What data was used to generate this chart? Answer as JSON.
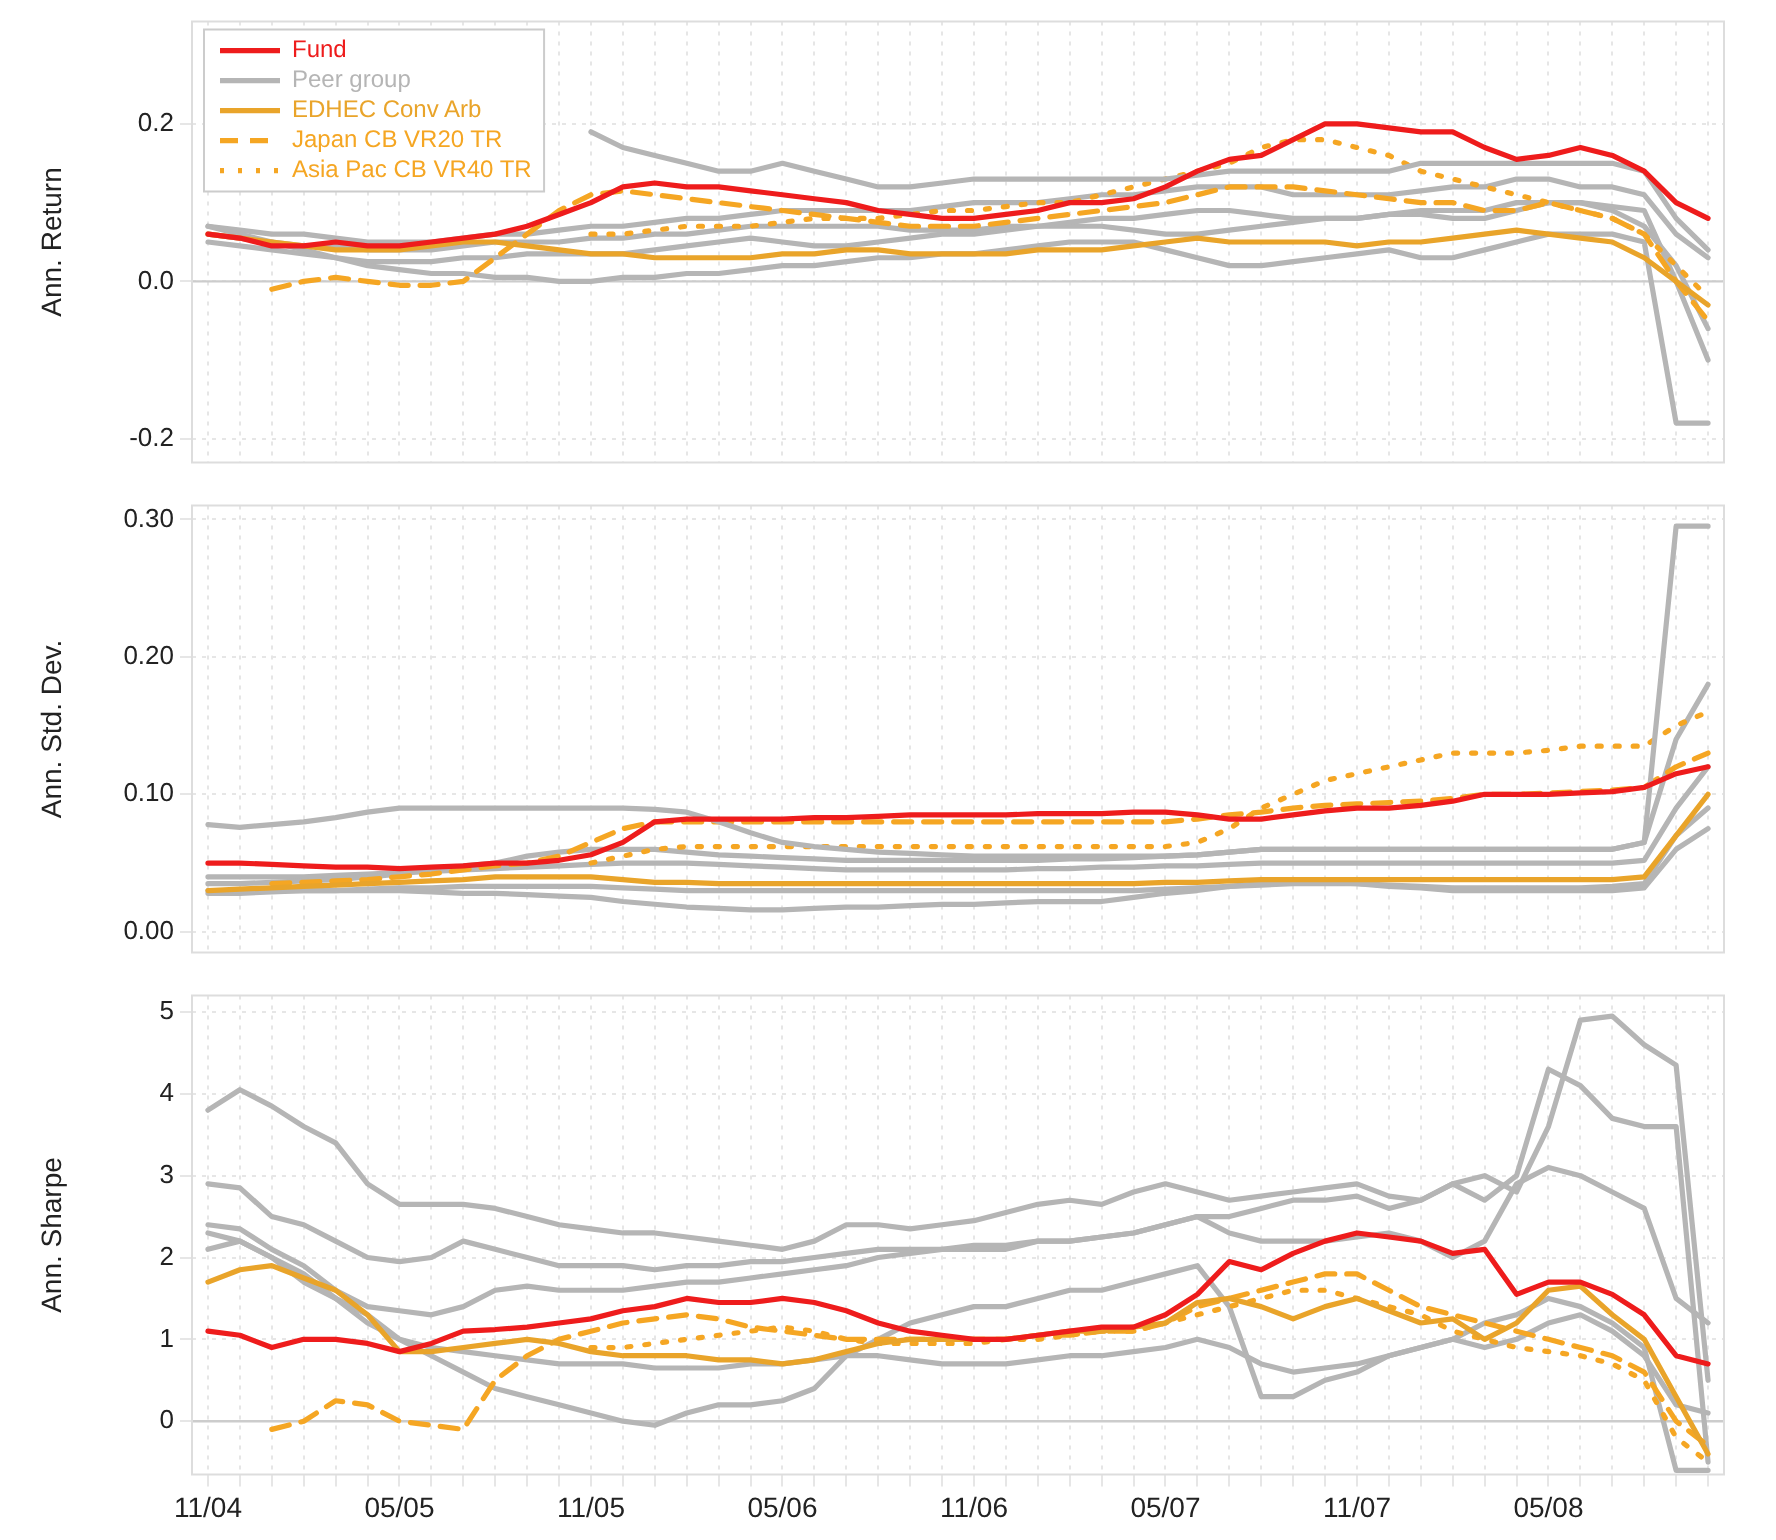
{
  "chart_data": [
    {
      "type": "line",
      "ylabel": "Ann. Return",
      "categories": [
        null,
        null,
        null,
        null,
        null,
        null,
        null,
        null,
        null,
        null,
        null,
        null,
        null,
        null,
        null,
        null,
        null,
        null,
        null,
        null,
        null,
        null,
        null,
        null,
        null,
        null,
        null,
        null,
        null,
        null,
        null,
        null,
        null,
        null,
        null,
        null,
        null,
        null,
        null,
        null,
        null,
        null,
        null,
        null,
        null,
        null,
        null,
        null
      ],
      "ylim": [
        -0.23,
        0.33
      ],
      "yticks": [
        -0.2,
        {
          "value": 0,
          "label": "0.0"
        },
        0.2
      ],
      "grid": true,
      "tick_labels": "y",
      "legend": "top left",
      "line_style": "solid",
      "ref_lines": [
        {
          "axis": "y",
          "value": 0,
          "color": "#cccccc"
        }
      ],
      "series": [
        {
          "name": "Fund",
          "color": "#ee1c1c",
          "values": [
            0.06,
            0.055,
            0.045,
            0.045,
            0.05,
            0.045,
            0.045,
            0.05,
            0.055,
            0.06,
            0.07,
            0.085,
            0.1,
            0.12,
            0.125,
            0.12,
            0.12,
            0.115,
            0.11,
            0.105,
            0.1,
            0.09,
            0.085,
            0.08,
            0.08,
            0.085,
            0.09,
            0.1,
            0.1,
            0.105,
            0.12,
            0.14,
            0.155,
            0.16,
            0.18,
            0.2,
            0.2,
            0.195,
            0.19,
            0.19,
            0.17,
            0.155,
            0.16,
            0.17,
            0.16,
            0.14,
            0.1,
            0.08
          ]
        },
        {
          "name": "Peer group",
          "color": "#b5b5b5",
          "values": [
            null,
            null,
            null,
            null,
            null,
            null,
            null,
            null,
            null,
            null,
            null,
            null,
            0.19,
            0.17,
            0.16,
            0.15,
            0.14,
            0.14,
            0.15,
            0.14,
            0.13,
            0.12,
            0.12,
            0.125,
            0.13,
            0.13,
            0.13,
            0.13,
            0.13,
            0.13,
            0.13,
            0.135,
            0.14,
            0.14,
            0.14,
            0.14,
            0.14,
            0.14,
            0.15,
            0.15,
            0.15,
            0.15,
            0.15,
            0.15,
            0.15,
            0.14,
            0.08,
            0.04
          ]
        },
        {
          "name": "EDHEC Conv Arb",
          "color": "#e9a42a",
          "values": [
            0.06,
            0.055,
            0.05,
            0.045,
            0.04,
            0.04,
            0.04,
            0.045,
            0.05,
            0.05,
            0.045,
            0.04,
            0.035,
            0.035,
            0.03,
            0.03,
            0.03,
            0.03,
            0.035,
            0.035,
            0.04,
            0.04,
            0.035,
            0.035,
            0.035,
            0.035,
            0.04,
            0.04,
            0.04,
            0.045,
            0.05,
            0.055,
            0.05,
            0.05,
            0.05,
            0.05,
            0.045,
            0.05,
            0.05,
            0.055,
            0.06,
            0.065,
            0.06,
            0.055,
            0.05,
            0.03,
            0,
            -0.03
          ]
        },
        {
          "name": "Japan CB VR20 TR",
          "color": "#f5a623",
          "line_style": "dashed",
          "values": [
            null,
            null,
            -0.01,
            0,
            0.005,
            0,
            -0.005,
            -0.005,
            0,
            0.03,
            0.06,
            0.09,
            0.11,
            0.115,
            0.11,
            0.105,
            0.1,
            0.095,
            0.09,
            0.085,
            0.08,
            0.075,
            0.07,
            0.07,
            0.07,
            0.075,
            0.08,
            0.085,
            0.09,
            0.095,
            0.1,
            0.11,
            0.12,
            0.12,
            0.12,
            0.115,
            0.11,
            0.105,
            0.1,
            0.1,
            0.09,
            0.09,
            0.1,
            0.09,
            0.08,
            0.06,
            0,
            -0.05
          ]
        },
        {
          "name": "Asia Pac CB VR40 TR",
          "color": "#f5a623",
          "line_style": "dotted",
          "values": [
            null,
            null,
            null,
            null,
            null,
            null,
            null,
            null,
            null,
            null,
            null,
            null,
            0.06,
            0.06,
            0.065,
            0.07,
            0.07,
            0.07,
            0.075,
            0.08,
            0.08,
            0.08,
            0.085,
            0.09,
            0.09,
            0.095,
            0.1,
            0.1,
            0.11,
            0.12,
            0.13,
            0.14,
            0.15,
            0.17,
            0.18,
            0.18,
            0.17,
            0.16,
            0.14,
            0.13,
            0.12,
            0.11,
            0.1,
            0.09,
            0.08,
            0.06,
            0.02,
            -0.02
          ]
        },
        {
          "color": "#b5b5b5",
          "values": [
            0.07,
            0.06,
            0.05,
            0.04,
            0.03,
            0.02,
            0.015,
            0.01,
            0.01,
            0.005,
            0.005,
            0,
            0,
            0.005,
            0.005,
            0.01,
            0.01,
            0.015,
            0.02,
            0.02,
            0.025,
            0.03,
            0.03,
            0.035,
            0.035,
            0.04,
            0.045,
            0.05,
            0.05,
            0.05,
            0.04,
            0.03,
            0.02,
            0.02,
            0.025,
            0.03,
            0.035,
            0.04,
            0.03,
            0.03,
            0.04,
            0.05,
            0.06,
            0.06,
            0.06,
            0.05,
            -0.18,
            -0.18
          ]
        },
        {
          "color": "#b5b5b5",
          "values": [
            0.07,
            0.065,
            0.06,
            0.06,
            0.055,
            0.05,
            0.05,
            0.05,
            0.055,
            0.06,
            0.06,
            0.065,
            0.07,
            0.07,
            0.075,
            0.08,
            0.08,
            0.085,
            0.09,
            0.09,
            0.09,
            0.09,
            0.09,
            0.095,
            0.1,
            0.1,
            0.1,
            0.105,
            0.11,
            0.11,
            0.115,
            0.12,
            0.12,
            0.12,
            0.11,
            0.11,
            0.11,
            0.11,
            0.115,
            0.12,
            0.12,
            0.13,
            0.13,
            0.12,
            0.12,
            0.11,
            0.06,
            0.03
          ]
        },
        {
          "color": "#b5b5b5",
          "values": [
            0.06,
            0.055,
            0.05,
            0.045,
            0.045,
            0.04,
            0.04,
            0.04,
            0.045,
            0.05,
            0.05,
            0.05,
            0.055,
            0.055,
            0.06,
            0.06,
            0.065,
            0.07,
            0.07,
            0.07,
            0.07,
            0.07,
            0.065,
            0.065,
            0.065,
            0.07,
            0.07,
            0.075,
            0.08,
            0.08,
            0.085,
            0.09,
            0.09,
            0.085,
            0.08,
            0.08,
            0.08,
            0.085,
            0.09,
            0.09,
            0.09,
            0.1,
            0.1,
            0.1,
            0.095,
            0.09,
            0,
            -0.1
          ]
        },
        {
          "color": "#b5b5b5",
          "values": [
            0.05,
            0.045,
            0.04,
            0.035,
            0.03,
            0.025,
            0.025,
            0.025,
            0.03,
            0.03,
            0.035,
            0.035,
            0.035,
            0.035,
            0.04,
            0.045,
            0.05,
            0.055,
            0.05,
            0.045,
            0.045,
            0.05,
            0.055,
            0.06,
            0.06,
            0.065,
            0.07,
            0.07,
            0.07,
            0.065,
            0.06,
            0.06,
            0.065,
            0.07,
            0.075,
            0.08,
            0.08,
            0.085,
            0.085,
            0.08,
            0.08,
            0.09,
            0.1,
            0.1,
            0.09,
            0.07,
            0.02,
            -0.06
          ]
        }
      ]
    },
    {
      "type": "line",
      "ylabel": "Ann. Std. Dev.",
      "categories": [
        null,
        null,
        null,
        null,
        null,
        null,
        null,
        null,
        null,
        null,
        null,
        null,
        null,
        null,
        null,
        null,
        null,
        null,
        null,
        null,
        null,
        null,
        null,
        null,
        null,
        null,
        null,
        null,
        null,
        null,
        null,
        null,
        null,
        null,
        null,
        null,
        null,
        null,
        null,
        null,
        null,
        null,
        null,
        null,
        null,
        null,
        null,
        null
      ],
      "ylim": [
        -0.015,
        0.31
      ],
      "yticks": [
        {
          "value": 0,
          "label": "0.00"
        },
        {
          "value": 0.1,
          "label": "0.10"
        },
        {
          "value": 0.2,
          "label": "0.20"
        },
        {
          "value": 0.3,
          "label": "0.30"
        }
      ],
      "grid": true,
      "tick_labels": "y",
      "line_style": "solid",
      "series": [
        {
          "color": "#ee1c1c",
          "values": [
            0.05,
            0.05,
            0.049,
            0.048,
            0.047,
            0.047,
            0.046,
            0.047,
            0.048,
            0.05,
            0.05,
            0.052,
            0.056,
            0.065,
            0.08,
            0.082,
            0.082,
            0.082,
            0.082,
            0.083,
            0.083,
            0.084,
            0.085,
            0.085,
            0.085,
            0.085,
            0.086,
            0.086,
            0.086,
            0.087,
            0.087,
            0.085,
            0.082,
            0.082,
            0.085,
            0.088,
            0.09,
            0.09,
            0.092,
            0.095,
            0.1,
            0.1,
            0.1,
            0.101,
            0.102,
            0.105,
            0.115,
            0.12
          ]
        },
        {
          "color": "#b5b5b5",
          "values": [
            0.078,
            0.076,
            0.078,
            0.08,
            0.083,
            0.087,
            0.09,
            0.09,
            0.09,
            0.09,
            0.09,
            0.09,
            0.09,
            0.09,
            0.089,
            0.087,
            0.08,
            0.072,
            0.065,
            0.062,
            0.06,
            0.058,
            0.057,
            0.056,
            0.055,
            0.055,
            0.055,
            0.055,
            0.055,
            0.055,
            0.055,
            0.056,
            0.058,
            0.06,
            0.06,
            0.06,
            0.06,
            0.06,
            0.06,
            0.06,
            0.06,
            0.06,
            0.06,
            0.06,
            0.06,
            0.065,
            0.295,
            0.295
          ]
        },
        {
          "color": "#e9a42a",
          "values": [
            0.03,
            0.031,
            0.032,
            0.033,
            0.034,
            0.035,
            0.036,
            0.037,
            0.038,
            0.04,
            0.04,
            0.04,
            0.04,
            0.038,
            0.036,
            0.036,
            0.035,
            0.035,
            0.035,
            0.035,
            0.035,
            0.035,
            0.035,
            0.035,
            0.035,
            0.035,
            0.035,
            0.035,
            0.035,
            0.035,
            0.036,
            0.036,
            0.037,
            0.038,
            0.038,
            0.038,
            0.038,
            0.038,
            0.038,
            0.038,
            0.038,
            0.038,
            0.038,
            0.038,
            0.038,
            0.04,
            0.07,
            0.1
          ]
        },
        {
          "color": "#f5a623",
          "line_style": "dashed",
          "values": [
            null,
            null,
            0.035,
            0.036,
            0.037,
            0.038,
            0.04,
            0.042,
            0.045,
            0.048,
            0.05,
            0.055,
            0.065,
            0.075,
            0.08,
            0.08,
            0.08,
            0.08,
            0.08,
            0.08,
            0.08,
            0.08,
            0.08,
            0.08,
            0.08,
            0.08,
            0.08,
            0.08,
            0.08,
            0.08,
            0.08,
            0.082,
            0.085,
            0.087,
            0.09,
            0.092,
            0.093,
            0.094,
            0.095,
            0.097,
            0.1,
            0.1,
            0.101,
            0.102,
            0.103,
            0.105,
            0.12,
            0.13
          ]
        },
        {
          "color": "#f5a623",
          "line_style": "dotted",
          "values": [
            null,
            null,
            null,
            null,
            null,
            null,
            null,
            null,
            null,
            null,
            null,
            null,
            0.05,
            0.055,
            0.06,
            0.062,
            0.062,
            0.062,
            0.062,
            0.062,
            0.062,
            0.062,
            0.062,
            0.062,
            0.062,
            0.062,
            0.062,
            0.062,
            0.062,
            0.062,
            0.062,
            0.065,
            0.075,
            0.09,
            0.1,
            0.11,
            0.115,
            0.12,
            0.125,
            0.13,
            0.13,
            0.13,
            0.132,
            0.135,
            0.135,
            0.135,
            0.15,
            0.16
          ]
        },
        {
          "color": "#b5b5b5",
          "values": [
            0.035,
            0.035,
            0.036,
            0.037,
            0.038,
            0.04,
            0.042,
            0.045,
            0.048,
            0.05,
            0.055,
            0.058,
            0.06,
            0.06,
            0.06,
            0.058,
            0.056,
            0.055,
            0.054,
            0.053,
            0.052,
            0.052,
            0.052,
            0.052,
            0.052,
            0.052,
            0.052,
            0.053,
            0.053,
            0.054,
            0.055,
            0.056,
            0.058,
            0.06,
            0.06,
            0.06,
            0.06,
            0.06,
            0.06,
            0.06,
            0.06,
            0.06,
            0.06,
            0.06,
            0.06,
            0.065,
            0.14,
            0.18
          ]
        },
        {
          "color": "#b5b5b5",
          "values": [
            0.03,
            0.03,
            0.03,
            0.03,
            0.03,
            0.03,
            0.03,
            0.029,
            0.028,
            0.028,
            0.027,
            0.026,
            0.025,
            0.022,
            0.02,
            0.018,
            0.017,
            0.016,
            0.016,
            0.017,
            0.018,
            0.018,
            0.019,
            0.02,
            0.02,
            0.021,
            0.022,
            0.022,
            0.022,
            0.025,
            0.028,
            0.03,
            0.033,
            0.035,
            0.036,
            0.036,
            0.035,
            0.033,
            0.032,
            0.03,
            0.03,
            0.03,
            0.03,
            0.03,
            0.03,
            0.032,
            0.06,
            0.075
          ]
        },
        {
          "color": "#b5b5b5",
          "values": [
            0.04,
            0.04,
            0.04,
            0.04,
            0.041,
            0.042,
            0.043,
            0.044,
            0.045,
            0.046,
            0.047,
            0.048,
            0.049,
            0.05,
            0.05,
            0.05,
            0.049,
            0.048,
            0.047,
            0.046,
            0.045,
            0.045,
            0.045,
            0.045,
            0.045,
            0.045,
            0.046,
            0.046,
            0.047,
            0.047,
            0.048,
            0.048,
            0.049,
            0.05,
            0.05,
            0.05,
            0.05,
            0.05,
            0.05,
            0.05,
            0.05,
            0.05,
            0.05,
            0.05,
            0.05,
            0.052,
            0.09,
            0.12
          ]
        },
        {
          "color": "#b5b5b5",
          "values": [
            0.028,
            0.028,
            0.029,
            0.03,
            0.03,
            0.031,
            0.032,
            0.032,
            0.033,
            0.033,
            0.033,
            0.033,
            0.033,
            0.032,
            0.031,
            0.03,
            0.03,
            0.03,
            0.03,
            0.03,
            0.03,
            0.03,
            0.03,
            0.03,
            0.03,
            0.03,
            0.03,
            0.03,
            0.03,
            0.03,
            0.031,
            0.032,
            0.033,
            0.034,
            0.035,
            0.035,
            0.035,
            0.034,
            0.033,
            0.032,
            0.032,
            0.032,
            0.032,
            0.032,
            0.033,
            0.035,
            0.07,
            0.09
          ]
        }
      ]
    },
    {
      "type": "line",
      "ylabel": "Ann. Sharpe",
      "categories": [
        "11/04",
        null,
        null,
        null,
        null,
        null,
        "05/05",
        null,
        null,
        null,
        null,
        null,
        "11/05",
        null,
        null,
        null,
        null,
        null,
        "05/06",
        null,
        null,
        null,
        null,
        null,
        "11/06",
        null,
        null,
        null,
        null,
        null,
        "05/07",
        null,
        null,
        null,
        null,
        null,
        "11/07",
        null,
        null,
        null,
        null,
        null,
        "05/08",
        null,
        null,
        null,
        null,
        null
      ],
      "ylim": [
        -0.65,
        5.2
      ],
      "yticks": [
        0,
        1,
        2,
        3,
        4,
        5
      ],
      "grid": true,
      "line_style": "solid",
      "ref_lines": [
        {
          "axis": "y",
          "value": 0,
          "color": "#cccccc"
        }
      ],
      "series": [
        {
          "color": "#ee1c1c",
          "values": [
            1.1,
            1.05,
            0.9,
            1,
            1,
            0.95,
            0.85,
            0.95,
            1.1,
            1.12,
            1.15,
            1.2,
            1.25,
            1.35,
            1.4,
            1.5,
            1.45,
            1.45,
            1.5,
            1.45,
            1.35,
            1.2,
            1.1,
            1.05,
            1,
            1,
            1.05,
            1.1,
            1.15,
            1.15,
            1.3,
            1.55,
            1.95,
            1.85,
            2.05,
            2.2,
            2.3,
            2.25,
            2.2,
            2.05,
            2.1,
            1.55,
            1.7,
            1.7,
            1.55,
            1.3,
            0.8,
            0.7
          ]
        },
        {
          "color": "#b5b5b5",
          "values": [
            3.8,
            4.05,
            3.85,
            3.6,
            3.4,
            2.9,
            2.65,
            2.65,
            2.65,
            2.6,
            2.5,
            2.4,
            2.35,
            2.3,
            2.3,
            2.25,
            2.2,
            2.15,
            2.1,
            2.2,
            2.4,
            2.4,
            2.35,
            2.4,
            2.45,
            2.55,
            2.65,
            2.7,
            2.65,
            2.8,
            2.9,
            2.8,
            2.7,
            2.75,
            2.8,
            2.85,
            2.9,
            2.75,
            2.7,
            2.9,
            3,
            2.8,
            3.6,
            4.9,
            4.95,
            4.6,
            4.35,
            0.5
          ]
        },
        {
          "color": "#e9a42a",
          "values": [
            1.7,
            1.85,
            1.9,
            1.75,
            1.6,
            1.3,
            0.85,
            0.85,
            0.9,
            0.95,
            1,
            0.95,
            0.85,
            0.8,
            0.8,
            0.8,
            0.75,
            0.75,
            0.7,
            0.75,
            0.85,
            0.95,
            1,
            1,
            1,
            1,
            1.05,
            1.1,
            1.1,
            1.15,
            1.2,
            1.45,
            1.5,
            1.4,
            1.25,
            1.4,
            1.5,
            1.35,
            1.2,
            1.25,
            1,
            1.2,
            1.6,
            1.65,
            1.3,
            1,
            0.3,
            -0.4
          ]
        },
        {
          "color": "#f5a623",
          "line_style": "dashed",
          "values": [
            null,
            null,
            -0.1,
            0,
            0.25,
            0.2,
            0,
            -0.05,
            -0.1,
            0.5,
            0.8,
            1,
            1.1,
            1.2,
            1.25,
            1.3,
            1.25,
            1.15,
            1.1,
            1.05,
            1,
            1,
            1,
            1,
            1,
            1,
            1.05,
            1.05,
            1.1,
            1.1,
            1.2,
            1.4,
            1.5,
            1.6,
            1.7,
            1.8,
            1.8,
            1.6,
            1.4,
            1.3,
            1.2,
            1.1,
            1,
            0.9,
            0.8,
            0.6,
            0,
            -0.3
          ]
        },
        {
          "color": "#f5a623",
          "line_style": "dotted",
          "values": [
            null,
            null,
            null,
            null,
            null,
            null,
            null,
            null,
            null,
            null,
            null,
            null,
            0.9,
            0.9,
            0.95,
            1,
            1.05,
            1.1,
            1.15,
            1.1,
            1,
            0.95,
            0.95,
            0.95,
            0.95,
            1,
            1,
            1.05,
            1.1,
            1.1,
            1.2,
            1.3,
            1.4,
            1.5,
            1.6,
            1.6,
            1.5,
            1.4,
            1.3,
            1.1,
            1,
            0.9,
            0.85,
            0.8,
            0.7,
            0.5,
            -0.2,
            -0.5
          ]
        },
        {
          "color": "#b5b5b5",
          "values": [
            2.9,
            2.85,
            2.5,
            2.4,
            2.2,
            2,
            1.95,
            2,
            2.2,
            2.1,
            2,
            1.9,
            1.9,
            1.9,
            1.85,
            1.9,
            1.9,
            1.95,
            1.95,
            2,
            2.05,
            2.1,
            2.1,
            2.1,
            2.15,
            2.15,
            2.2,
            2.2,
            2.25,
            2.3,
            2.4,
            2.5,
            2.5,
            2.6,
            2.7,
            2.7,
            2.75,
            2.6,
            2.7,
            2.9,
            2.7,
            3,
            4.3,
            4.1,
            3.7,
            3.6,
            3.6,
            -0.5
          ]
        },
        {
          "color": "#b5b5b5",
          "values": [
            2.4,
            2.35,
            2.1,
            1.9,
            1.6,
            1.4,
            1.35,
            1.3,
            1.4,
            1.6,
            1.65,
            1.6,
            1.6,
            1.6,
            1.65,
            1.7,
            1.7,
            1.75,
            1.8,
            1.85,
            1.9,
            2,
            2.05,
            2.1,
            2.1,
            2.1,
            2.2,
            2.2,
            2.25,
            2.3,
            2.4,
            2.5,
            2.3,
            2.2,
            2.2,
            2.2,
            2.25,
            2.3,
            2.2,
            2,
            2.2,
            2.9,
            3.1,
            3,
            2.8,
            2.6,
            1.5,
            1.2
          ]
        },
        {
          "color": "#b5b5b5",
          "values": [
            2.3,
            2.2,
            2,
            1.7,
            1.5,
            1.3,
            1,
            0.8,
            0.6,
            0.4,
            0.3,
            0.2,
            0.1,
            0,
            -0.05,
            0.1,
            0.2,
            0.2,
            0.25,
            0.4,
            0.8,
            1,
            1.2,
            1.3,
            1.4,
            1.4,
            1.5,
            1.6,
            1.6,
            1.7,
            1.8,
            1.9,
            1.4,
            0.3,
            0.3,
            0.5,
            0.6,
            0.8,
            0.9,
            1,
            1.2,
            1.3,
            1.5,
            1.4,
            1.2,
            0.9,
            -0.6,
            -0.6
          ]
        },
        {
          "color": "#b5b5b5",
          "values": [
            2.1,
            2.2,
            2,
            1.8,
            1.5,
            1.2,
            1,
            0.9,
            0.85,
            0.8,
            0.75,
            0.7,
            0.7,
            0.7,
            0.65,
            0.65,
            0.65,
            0.7,
            0.7,
            0.75,
            0.8,
            0.8,
            0.75,
            0.7,
            0.7,
            0.7,
            0.75,
            0.8,
            0.8,
            0.85,
            0.9,
            1,
            0.9,
            0.7,
            0.6,
            0.65,
            0.7,
            0.8,
            0.9,
            1,
            0.9,
            1,
            1.2,
            1.3,
            1.1,
            0.8,
            0.2,
            0.1
          ]
        }
      ]
    }
  ]
}
